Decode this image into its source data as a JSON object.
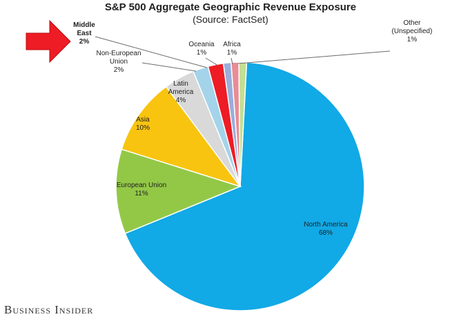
{
  "chart_data": {
    "type": "pie",
    "title": "S&P 500 Aggregate Geographic Revenue Exposure",
    "subtitle": "(Source: FactSet)",
    "slices": [
      {
        "key": "north-america",
        "lines": [
          "North America",
          "68%"
        ],
        "value": 68,
        "color": "#11a9e6",
        "bold": false
      },
      {
        "key": "european-union",
        "lines": [
          "European Union",
          "11%"
        ],
        "value": 11,
        "color": "#93c847",
        "bold": false
      },
      {
        "key": "asia",
        "lines": [
          "Asia",
          "10%"
        ],
        "value": 10,
        "color": "#f8c40f",
        "bold": false
      },
      {
        "key": "latin-america",
        "lines": [
          "Latin",
          "America",
          "4%"
        ],
        "value": 4,
        "color": "#d9d9d9",
        "bold": false
      },
      {
        "key": "non-european-union",
        "lines": [
          "Non-European",
          "Union",
          "2%"
        ],
        "value": 2,
        "color": "#a4d4ea",
        "bold": false
      },
      {
        "key": "middle-east",
        "lines": [
          "Middle",
          "East",
          "2%"
        ],
        "value": 2,
        "color": "#ee1c24",
        "bold": true
      },
      {
        "key": "oceania",
        "lines": [
          "Oceania",
          "1%"
        ],
        "value": 1,
        "color": "#9aaedc",
        "bold": false
      },
      {
        "key": "africa",
        "lines": [
          "Africa",
          "1%"
        ],
        "value": 1,
        "color": "#e78d95",
        "bold": false
      },
      {
        "key": "other-unspecified",
        "lines": [
          "Other",
          "(Unspecified)",
          "1%"
        ],
        "value": 1,
        "color": "#c3df94",
        "bold": false
      }
    ],
    "highlight_color": "#ee1c24"
  },
  "branding": {
    "source_logo": "Business Insider"
  }
}
